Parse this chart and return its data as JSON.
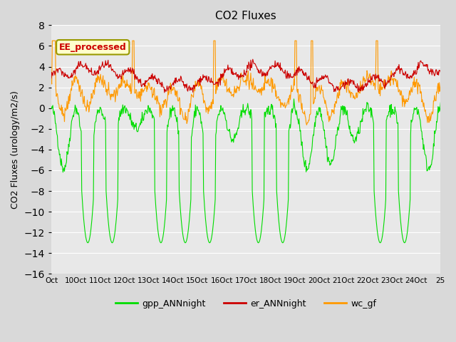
{
  "title": "CO2 Fluxes",
  "ylabel": "CO2 Fluxes (urology/m2/s)",
  "xlabel": "",
  "ylim": [
    -16,
    8
  ],
  "yticks": [
    -16,
    -14,
    -12,
    -10,
    -8,
    -6,
    -4,
    -2,
    0,
    2,
    4,
    6,
    8
  ],
  "xtick_labels": [
    "Oct",
    "10Oct",
    "11Oct",
    "12Oct",
    "13Oct",
    "14Oct",
    "15Oct",
    "16Oct",
    "17Oct",
    "18Oct",
    "19Oct",
    "20Oct",
    "21Oct",
    "22Oct",
    "23Oct",
    "24Oct",
    "25"
  ],
  "gpp_color": "#00dd00",
  "er_color": "#cc0000",
  "wc_color": "#ff9900",
  "legend_box_label": "EE_processed",
  "legend_box_bg": "#ffffcc",
  "legend_box_edge": "#999900",
  "bg_color": "#d9d9d9",
  "plot_bg": "#e8e8e8",
  "grid_color": "#ffffff",
  "n_points_per_day": 48,
  "n_days": 16,
  "seed": 42
}
